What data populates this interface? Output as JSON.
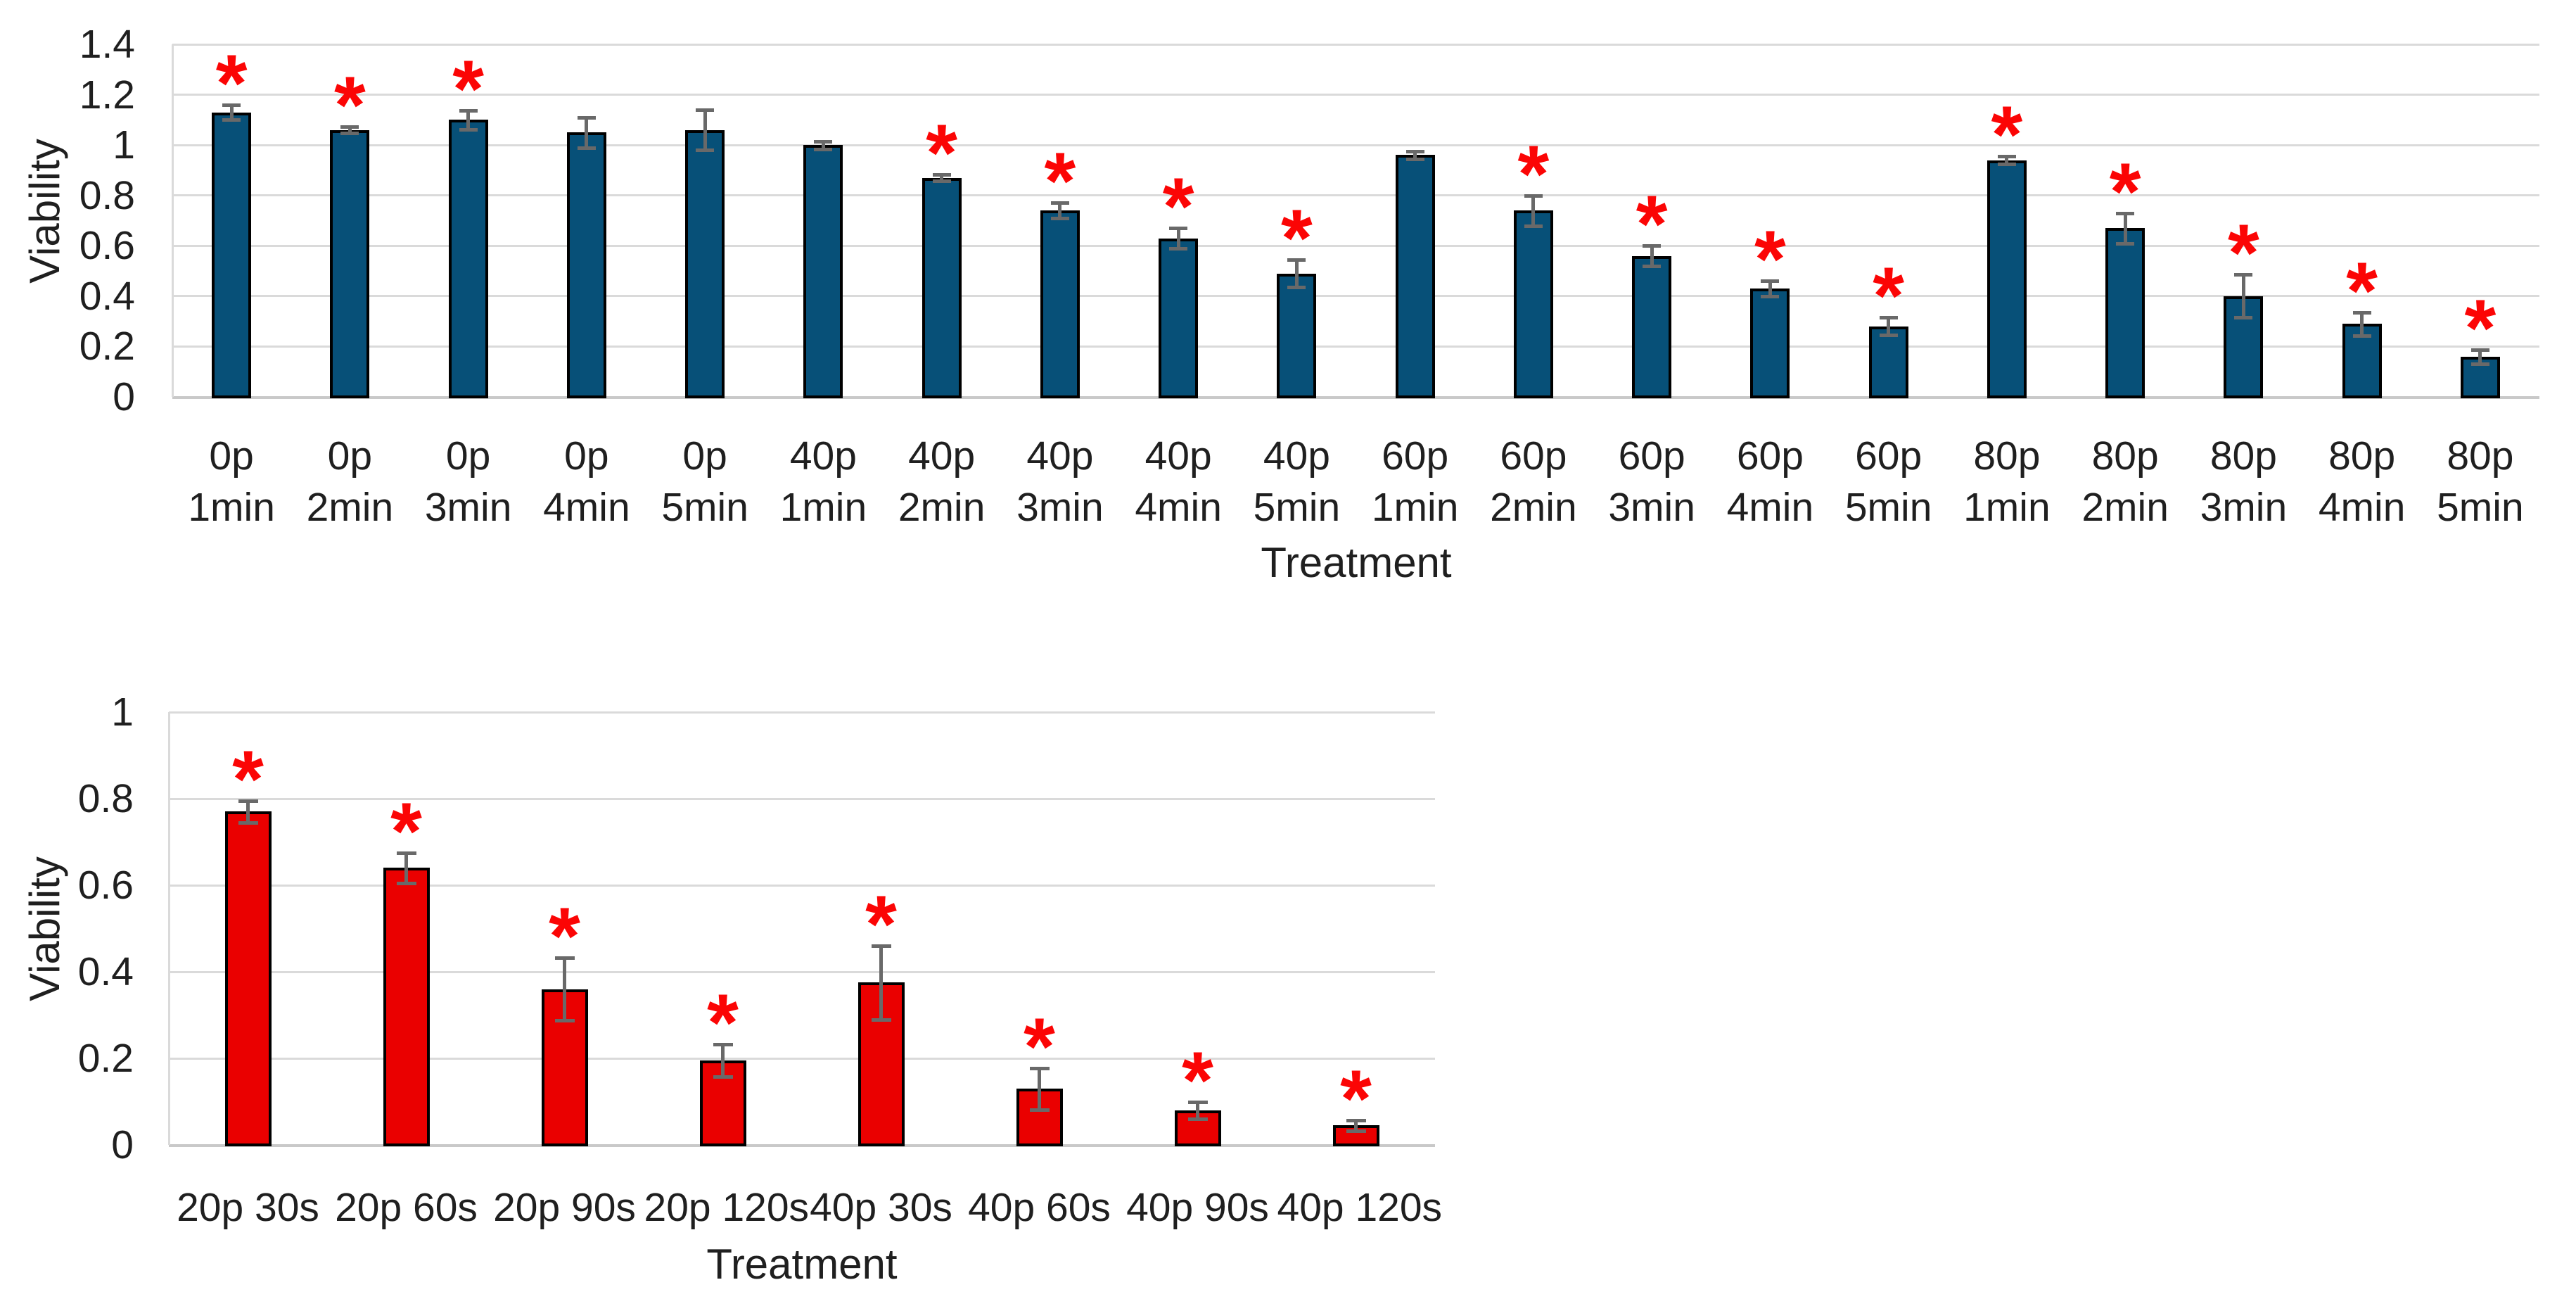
{
  "figure": {
    "background": "#ffffff",
    "text_color": "#1f1f1f"
  },
  "chart_data": [
    {
      "id": "top-viability-chart",
      "type": "bar",
      "title": "",
      "ylabel": "Viability",
      "xlabel": "Treatment",
      "ylim": [
        0,
        1.4
      ],
      "ytick_step": 0.2,
      "ytick_labels": [
        "0",
        "0.2",
        "0.4",
        "0.6",
        "0.8",
        "1",
        "1.2",
        "1.4"
      ],
      "grid": true,
      "legend": "none",
      "bar_color": "#075078",
      "bar_border_color": "#000000",
      "error_bar_color": "#696969",
      "significance_marker": "*",
      "significance_color": "#fb0505",
      "categories": [
        [
          "0p",
          "1min"
        ],
        [
          "0p",
          "2min"
        ],
        [
          "0p",
          "3min"
        ],
        [
          "0p",
          "4min"
        ],
        [
          "0p",
          "5min"
        ],
        [
          "40p",
          "1min"
        ],
        [
          "40p",
          "2min"
        ],
        [
          "40p",
          "3min"
        ],
        [
          "40p",
          "4min"
        ],
        [
          "40p",
          "5min"
        ],
        [
          "60p",
          "1min"
        ],
        [
          "60p",
          "2min"
        ],
        [
          "60p",
          "3min"
        ],
        [
          "60p",
          "4min"
        ],
        [
          "60p",
          "5min"
        ],
        [
          "80p",
          "1min"
        ],
        [
          "80p",
          "2min"
        ],
        [
          "80p",
          "3min"
        ],
        [
          "80p",
          "4min"
        ],
        [
          "80p",
          "5min"
        ]
      ],
      "values": [
        1.13,
        1.06,
        1.1,
        1.05,
        1.06,
        1.0,
        0.87,
        0.74,
        0.63,
        0.49,
        0.96,
        0.74,
        0.56,
        0.43,
        0.28,
        0.94,
        0.67,
        0.4,
        0.29,
        0.16
      ],
      "errors": [
        0.03,
        0.012,
        0.037,
        0.06,
        0.08,
        0.015,
        0.012,
        0.03,
        0.04,
        0.055,
        0.015,
        0.06,
        0.04,
        0.03,
        0.035,
        0.015,
        0.06,
        0.085,
        0.046,
        0.028
      ],
      "significant": [
        true,
        true,
        true,
        false,
        false,
        false,
        true,
        true,
        true,
        true,
        false,
        true,
        true,
        true,
        true,
        true,
        true,
        true,
        true,
        true
      ]
    },
    {
      "id": "bottom-viability-chart",
      "type": "bar",
      "title": "",
      "ylabel": "Viability",
      "xlabel": "Treatment",
      "ylim": [
        0,
        1.0
      ],
      "ytick_step": 0.2,
      "ytick_labels": [
        "0",
        "0.2",
        "0.4",
        "0.6",
        "0.8",
        "1"
      ],
      "grid": true,
      "legend": "none",
      "bar_color": "#ea0000",
      "bar_border_color": "#000000",
      "error_bar_color": "#696969",
      "significance_marker": "*",
      "significance_color": "#fb0505",
      "categories": [
        [
          "20p 30s"
        ],
        [
          "20p 60s"
        ],
        [
          "20p 90s"
        ],
        [
          "20p 120s"
        ],
        [
          "40p 30s"
        ],
        [
          "40p 60s"
        ],
        [
          "40p 90s"
        ],
        [
          "40p 120s"
        ]
      ],
      "values": [
        0.77,
        0.64,
        0.36,
        0.195,
        0.375,
        0.13,
        0.08,
        0.045
      ],
      "errors": [
        0.025,
        0.035,
        0.072,
        0.038,
        0.085,
        0.048,
        0.02,
        0.012
      ],
      "significant": [
        true,
        true,
        true,
        true,
        true,
        true,
        true,
        true
      ]
    }
  ]
}
